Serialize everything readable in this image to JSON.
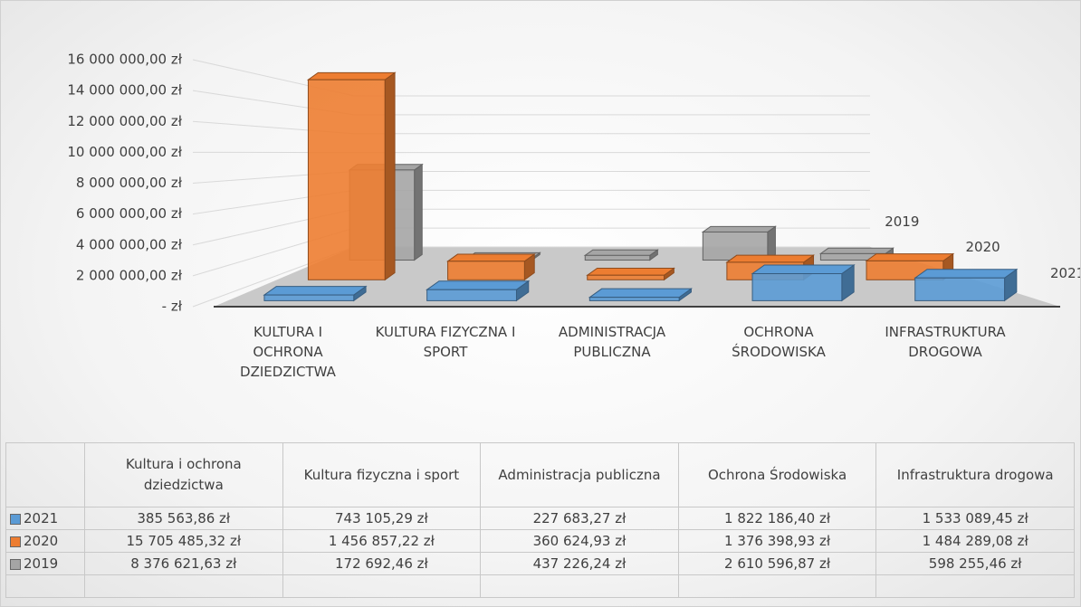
{
  "chart_data": {
    "type": "bar",
    "categories": [
      "KULTURA I OCHRONA DZIEDZICTWA",
      "KULTURA FIZYCZNA I SPORT",
      "ADMINISTRACJA PUBLICZNA",
      "OCHRONA ŚRODOWISKA",
      "INFRASTRUKTURA DROGOWA"
    ],
    "table_categories": [
      "Kultura i ochrona dziedzictwa",
      "Kultura fizyczna i sport",
      "Administracja publiczna",
      "Ochrona Środowiska",
      "Infrastruktura drogowa"
    ],
    "series": [
      {
        "name": "2021",
        "color": "#5b9bd5",
        "values": [
          385563.86,
          743105.29,
          227683.27,
          1822186.4,
          1533089.45
        ],
        "value_labels": [
          "385 563,86 zł",
          "743 105,29 zł",
          "227 683,27 zł",
          "1 822 186,40 zł",
          "1 533 089,45 zł"
        ]
      },
      {
        "name": "2020",
        "color": "#ed7d31",
        "values": [
          15705485.32,
          1456857.22,
          360624.93,
          1376398.93,
          1484289.08
        ],
        "value_labels": [
          "15 705 485,32 zł",
          "1 456 857,22 zł",
          "360 624,93 zł",
          "1 376 398,93 zł",
          "1 484 289,08 zł"
        ]
      },
      {
        "name": "2019",
        "color": "#a5a5a5",
        "values": [
          8376621.63,
          172692.46,
          437226.24,
          2610596.87,
          598255.46
        ],
        "value_labels": [
          "8 376 621,63 zł",
          "172 692,46 zł",
          "437 226,24 zł",
          "2 610 596,87 zł",
          "598 255,46 zł"
        ]
      }
    ],
    "ylim": [
      0,
      16000000
    ],
    "yticks": [
      {
        "value": 0,
        "label": "-   zł"
      },
      {
        "value": 2000000,
        "label": "2 000 000,00 zł"
      },
      {
        "value": 4000000,
        "label": "4 000 000,00 zł"
      },
      {
        "value": 6000000,
        "label": "6 000 000,00 zł"
      },
      {
        "value": 8000000,
        "label": "8 000 000,00 zł"
      },
      {
        "value": 10000000,
        "label": "10 000 000,00 zł"
      },
      {
        "value": 12000000,
        "label": "12 000 000,00 zł"
      },
      {
        "value": 14000000,
        "label": "14 000 000,00 zł"
      },
      {
        "value": 16000000,
        "label": "16 000 000,00 zł"
      }
    ],
    "grid": true
  }
}
